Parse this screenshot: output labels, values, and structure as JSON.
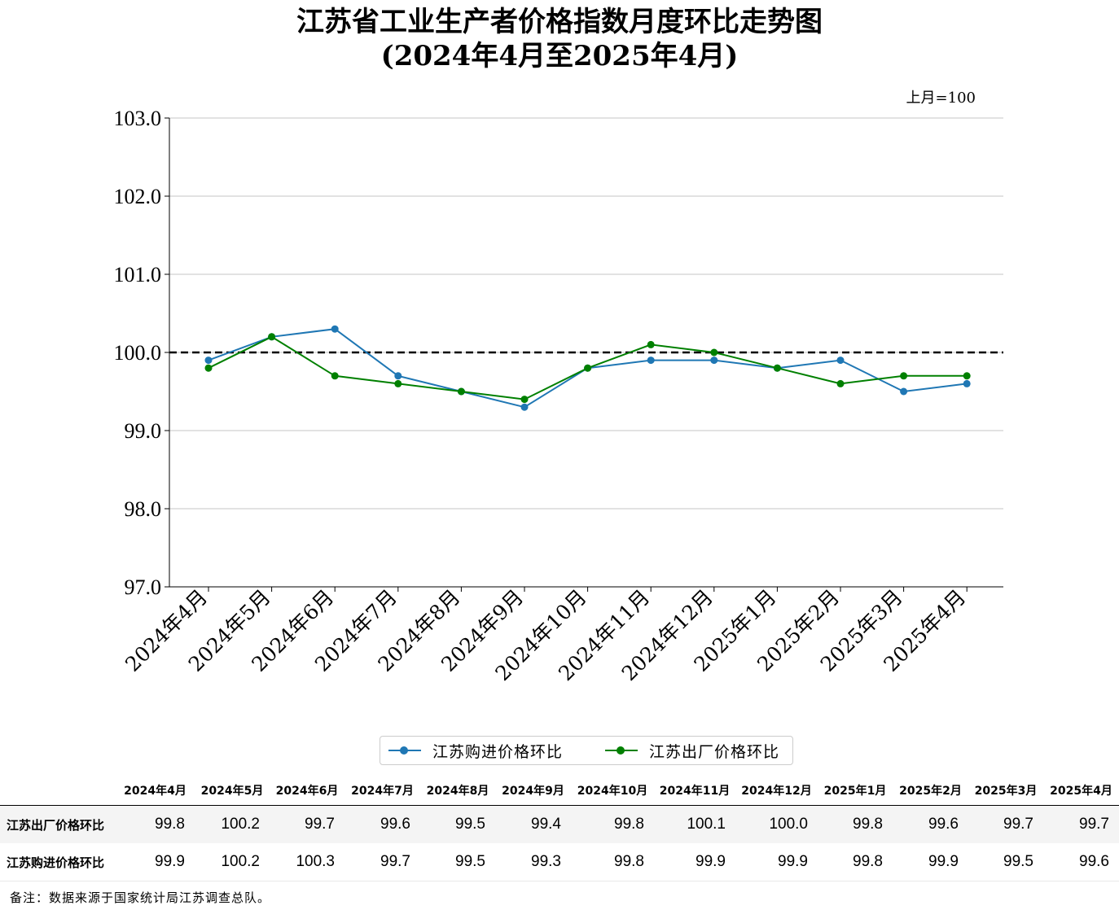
{
  "title": "江苏省工业生产者价格指数月度环比走势图",
  "subtitle": "(2024年4月至2025年4月)",
  "unit_note": "上月=100",
  "colors": {
    "purchase": "#1f77b4",
    "ex_factory": "#008000",
    "reference": "#000000",
    "grid": "#b0b0b0"
  },
  "chart_data": {
    "type": "line",
    "categories": [
      "2024年4月",
      "2024年5月",
      "2024年6月",
      "2024年7月",
      "2024年8月",
      "2024年9月",
      "2024年10月",
      "2024年11月",
      "2024年12月",
      "2025年1月",
      "2025年2月",
      "2025年3月",
      "2025年4月"
    ],
    "series": [
      {
        "name": "江苏购进价格环比",
        "values": [
          99.9,
          100.2,
          100.3,
          99.7,
          99.5,
          99.3,
          99.8,
          99.9,
          99.9,
          99.8,
          99.9,
          99.5,
          99.6
        ]
      },
      {
        "name": "江苏出厂价格环比",
        "values": [
          99.8,
          100.2,
          99.7,
          99.6,
          99.5,
          99.4,
          99.8,
          100.1,
          100.0,
          99.8,
          99.6,
          99.7,
          99.7
        ]
      }
    ],
    "ylim": [
      97.0,
      103.0
    ],
    "yticks": [
      "97.0",
      "98.0",
      "99.0",
      "100.0",
      "101.0",
      "102.0",
      "103.0"
    ],
    "reference_line": 100.0,
    "grid": "horizontal",
    "legend_position": "below"
  },
  "table": {
    "columns": [
      "2024年4月",
      "2024年5月",
      "2024年6月",
      "2024年7月",
      "2024年8月",
      "2024年9月",
      "2024年10月",
      "2024年11月",
      "2024年12月",
      "2025年1月",
      "2025年2月",
      "2025年3月",
      "2025年4月"
    ],
    "rows": [
      {
        "label": "江苏出厂价格环比",
        "values": [
          "99.8",
          "100.2",
          "99.7",
          "99.6",
          "99.5",
          "99.4",
          "99.8",
          "100.1",
          "100.0",
          "99.8",
          "99.6",
          "99.7",
          "99.7"
        ]
      },
      {
        "label": "江苏购进价格环比",
        "values": [
          "99.9",
          "100.2",
          "100.3",
          "99.7",
          "99.5",
          "99.3",
          "99.8",
          "99.9",
          "99.9",
          "99.8",
          "99.9",
          "99.5",
          "99.6"
        ]
      }
    ]
  },
  "footnote": "备注：数据来源于国家统计局江苏调查总队。"
}
